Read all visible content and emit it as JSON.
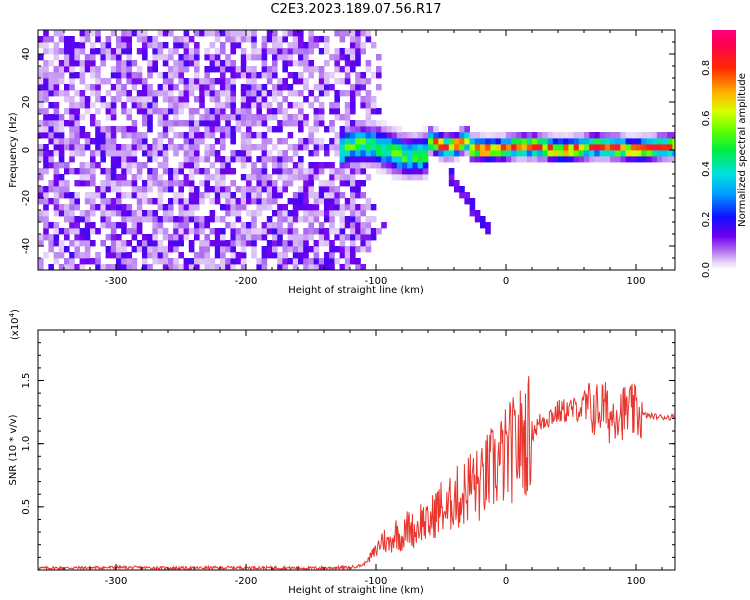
{
  "page": {
    "title": "C2E3.2023.189.07.56.R17"
  },
  "chart_data": [
    {
      "type": "heatmap",
      "xlabel": "Height of straight line (km)",
      "ylabel": "Frequency (Hz)",
      "xlim": [
        -360,
        130
      ],
      "ylim": [
        -50,
        50
      ],
      "xticks": [
        -300,
        -200,
        -100,
        0,
        100
      ],
      "yticks": [
        -40,
        -20,
        0,
        20,
        40
      ],
      "colorbar": {
        "label": "Normalized spectral amplitude",
        "range": [
          0.0,
          0.95
        ],
        "ticks": [
          0.0,
          0.2,
          0.4,
          0.6,
          0.8
        ]
      },
      "regions": [
        {
          "description": "broadband noise",
          "x_range": [
            -360,
            -110
          ],
          "freq_range": [
            -50,
            50
          ],
          "amplitude_range": [
            0.0,
            0.15
          ]
        },
        {
          "description": "signal band",
          "x_range": [
            -130,
            130
          ],
          "center_freq": 0,
          "peak_amplitude": 0.85
        },
        {
          "description": "secondary trace",
          "x_range": [
            -45,
            -15
          ],
          "freq_range": [
            -12,
            -35
          ]
        }
      ]
    },
    {
      "type": "line",
      "xlabel": "Height of straight line (km)",
      "ylabel": "SNR (10 * v/v)",
      "y_multiplier": "(x10",
      "y_multiplier_exp": "4",
      "xlim": [
        -360,
        130
      ],
      "ylim": [
        0,
        19000
      ],
      "xticks": [
        -300,
        -200,
        -100,
        0,
        100
      ],
      "yticks": [
        5000,
        10000,
        15000
      ],
      "ytick_labels": [
        "0.5",
        "1.0",
        "1.5"
      ],
      "series": [
        {
          "color": "#e8352e",
          "x": [
            -360,
            -300,
            -250,
            -200,
            -150,
            -120,
            -110,
            -100,
            -95,
            -90,
            -85,
            -80,
            -75,
            -70,
            -65,
            -60,
            -55,
            -50,
            -45,
            -40,
            -35,
            -30,
            -25,
            -20,
            -15,
            -10,
            -5,
            0,
            5,
            10,
            15,
            20,
            25,
            30,
            40,
            50,
            60,
            70,
            75,
            80,
            85,
            90,
            95,
            100,
            110,
            120,
            130
          ],
          "y": [
            150,
            200,
            150,
            200,
            150,
            200,
            400,
            1500,
            2500,
            2000,
            3000,
            2500,
            3500,
            3000,
            4000,
            3500,
            4500,
            5000,
            4500,
            6000,
            5500,
            6500,
            7000,
            6500,
            7500,
            8000,
            8500,
            9000,
            9500,
            10000,
            10500,
            11000,
            11500,
            12000,
            12500,
            12700,
            12800,
            12700,
            13000,
            12000,
            12800,
            12500,
            12600,
            12400,
            12200,
            12100,
            12100
          ]
        }
      ]
    }
  ]
}
